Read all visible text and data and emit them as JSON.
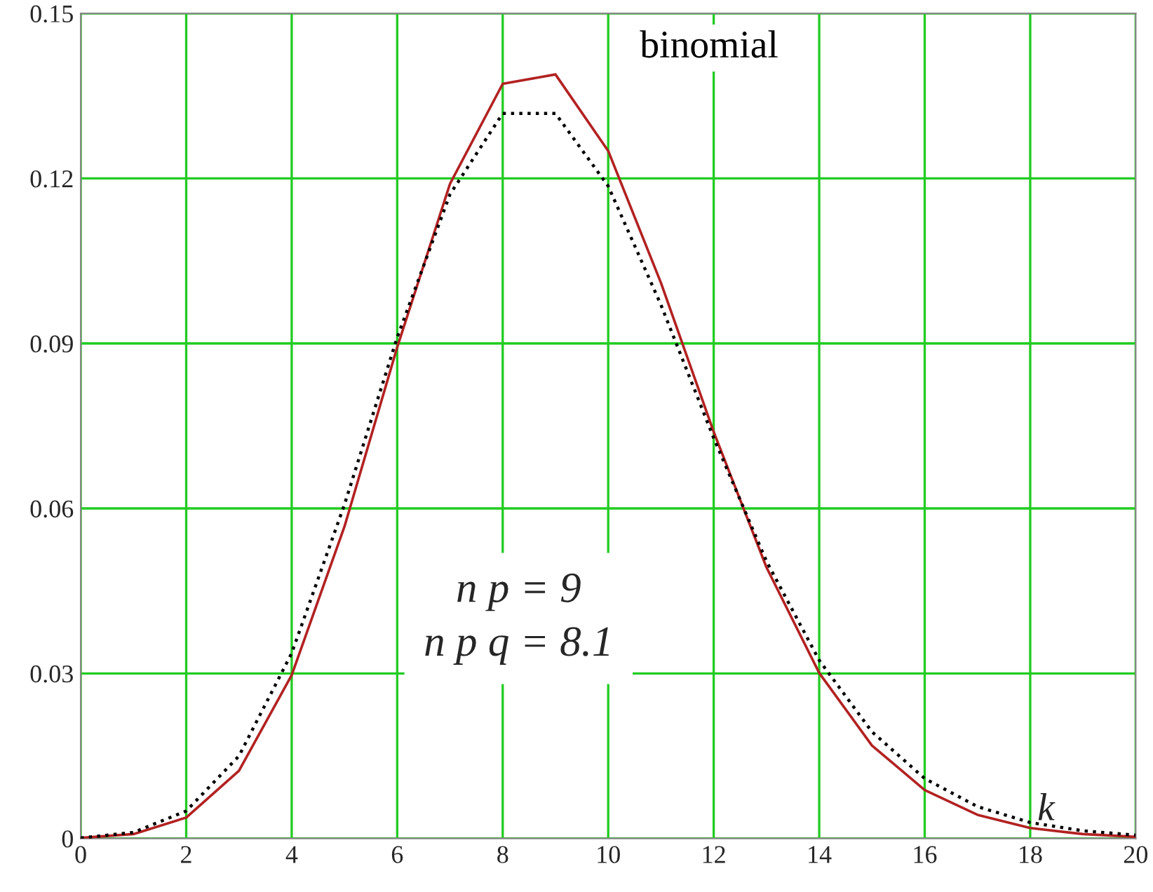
{
  "chart_data": {
    "type": "line",
    "x": [
      0,
      1,
      2,
      3,
      4,
      5,
      6,
      7,
      8,
      9,
      10,
      11,
      12,
      13,
      14,
      15,
      16,
      17,
      18,
      19,
      20
    ],
    "series": [
      {
        "name": "binomial",
        "color": "#b22222",
        "line_style": "solid",
        "values": [
          0.0001,
          0.0008,
          0.0038,
          0.0123,
          0.0297,
          0.0567,
          0.0893,
          0.119,
          0.1372,
          0.1389,
          0.125,
          0.101,
          0.0739,
          0.0493,
          0.0301,
          0.0169,
          0.0088,
          0.0043,
          0.0019,
          0.0008,
          0.0003
        ]
      },
      {
        "color": "#000000",
        "line_style": "dotted",
        "values": [
          0.0001,
          0.0011,
          0.005,
          0.015,
          0.0337,
          0.0607,
          0.0911,
          0.1171,
          0.1318,
          0.1318,
          0.1186,
          0.097,
          0.0728,
          0.0504,
          0.0324,
          0.0194,
          0.0109,
          0.0058,
          0.0029,
          0.0014,
          0.0006
        ]
      }
    ],
    "xlim": [
      0,
      20
    ],
    "xticks": [
      0,
      2,
      4,
      6,
      8,
      10,
      12,
      14,
      16,
      18,
      20
    ],
    "ylim": [
      0,
      0.15
    ],
    "yticks": [
      0,
      0.03,
      0.06,
      0.09,
      0.12,
      0.15
    ],
    "grid": true,
    "marker": "none",
    "xlabel": "k",
    "annotations": [
      "n p = 9",
      "n p q = 8.1"
    ]
  }
}
